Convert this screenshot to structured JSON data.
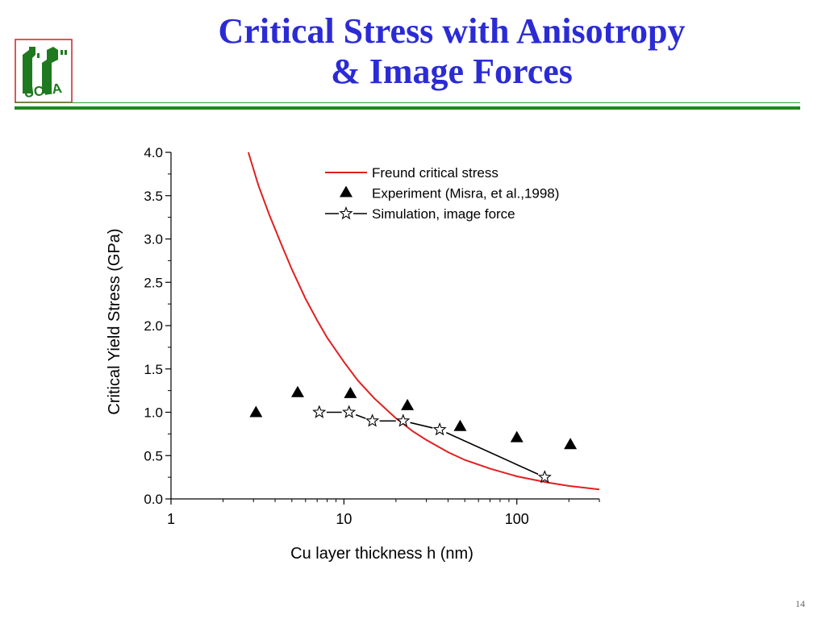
{
  "slide": {
    "title_line1": "Critical Stress with Anisotropy",
    "title_line2": "& Image Forces",
    "page_number": "14",
    "logo_text": "UCLA"
  },
  "colors": {
    "title": "#2b2bd6",
    "rule": "#1f8a1f",
    "freund_curve": "#e02020",
    "markers": "#000000"
  },
  "chart_data": {
    "type": "scatter",
    "xlabel": "Cu layer thickness h (nm)",
    "ylabel": "Critical Yield Stress (GPa)",
    "xscale": "log",
    "xlim": [
      1,
      300
    ],
    "ylim": [
      0,
      4
    ],
    "x_ticks": [
      {
        "value": 1,
        "label": "1"
      },
      {
        "value": 10,
        "label": "10"
      },
      {
        "value": 100,
        "label": "100"
      }
    ],
    "y_ticks": [
      {
        "value": 0,
        "label": "0.0"
      },
      {
        "value": 0.5,
        "label": "0.5"
      },
      {
        "value": 1.0,
        "label": "1.0"
      },
      {
        "value": 1.5,
        "label": "1.5"
      },
      {
        "value": 2.0,
        "label": "2.0"
      },
      {
        "value": 2.5,
        "label": "2.5"
      },
      {
        "value": 3.0,
        "label": "3.0"
      },
      {
        "value": 3.5,
        "label": "3.5"
      },
      {
        "value": 4.0,
        "label": "4.0"
      }
    ],
    "legend_position": "top-right",
    "series": [
      {
        "name": "Freund critical stress",
        "kind": "line",
        "color": "#e02020",
        "x": [
          2.8,
          3.2,
          3.7,
          4.3,
          5,
          6,
          7,
          8,
          10,
          12,
          15,
          20,
          25,
          30,
          40,
          50,
          70,
          100,
          150,
          200,
          300
        ],
        "y": [
          4.0,
          3.62,
          3.28,
          2.96,
          2.65,
          2.31,
          2.06,
          1.86,
          1.58,
          1.37,
          1.16,
          0.93,
          0.78,
          0.68,
          0.54,
          0.45,
          0.35,
          0.26,
          0.19,
          0.15,
          0.11
        ]
      },
      {
        "name": "Experiment (Misra, et al.,1998)",
        "kind": "marker-triangle",
        "color": "#000000",
        "x": [
          3.1,
          5.4,
          10.9,
          23.3,
          47,
          100,
          204
        ],
        "y": [
          1.0,
          1.23,
          1.22,
          1.08,
          0.84,
          0.71,
          0.63
        ]
      },
      {
        "name": "Simulation, image force",
        "kind": "line-star",
        "color": "#000000",
        "x": [
          7.2,
          10.7,
          14.6,
          22.0,
          35.8,
          145
        ],
        "y": [
          1.0,
          1.0,
          0.9,
          0.9,
          0.8,
          0.25
        ]
      }
    ]
  }
}
